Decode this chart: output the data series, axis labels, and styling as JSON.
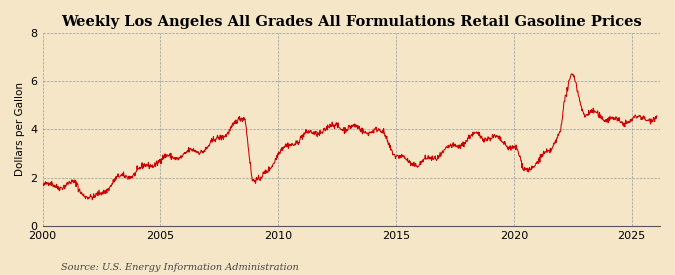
{
  "title": "Weekly Los Angeles All Grades All Formulations Retail Gasoline Prices",
  "ylabel": "Dollars per Gallon",
  "source": "Source: U.S. Energy Information Administration",
  "line_color": "#cc0000",
  "background_color": "#f5e6c8",
  "plot_background_color": "#f5e6c8",
  "ylim": [
    0,
    8
  ],
  "yticks": [
    0,
    2,
    4,
    6,
    8
  ],
  "xlim_start": 2000.0,
  "xlim_end": 2026.2,
  "xticks": [
    2000,
    2005,
    2010,
    2015,
    2020,
    2025
  ],
  "title_fontsize": 10.5,
  "label_fontsize": 7.5,
  "tick_fontsize": 8,
  "source_fontsize": 7
}
